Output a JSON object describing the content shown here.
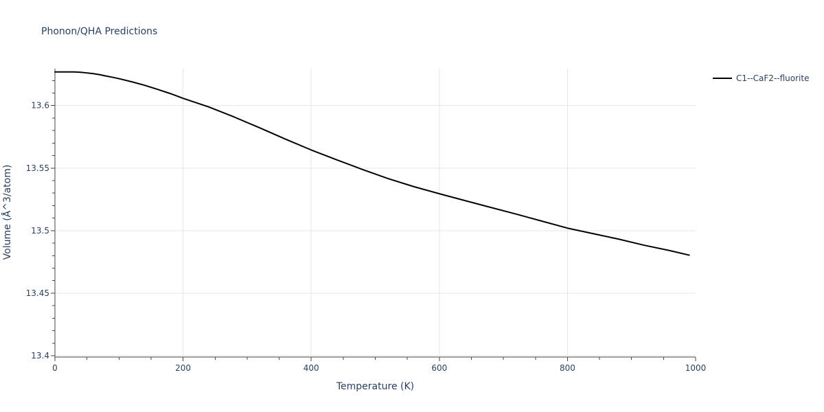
{
  "chart_data": {
    "type": "line",
    "title": "Phonon/QHA Predictions",
    "xlabel": "Temperature (K)",
    "ylabel": "Volume (Å^3/atom)",
    "xlim": [
      0,
      1000
    ],
    "ylim": [
      13.4,
      13.6295
    ],
    "grid": true,
    "legend_position": "top-right",
    "x_ticks": [
      0,
      200,
      400,
      600,
      800,
      1000
    ],
    "x_tick_labels": [
      "0",
      "200",
      "400",
      "600",
      "800",
      "1000"
    ],
    "y_ticks": [
      13.4,
      13.45,
      13.5,
      13.55,
      13.6
    ],
    "y_tick_labels": [
      "13.4",
      "13.45",
      "13.5",
      "13.55",
      "13.6"
    ],
    "series": [
      {
        "name": "C1--CaF2--fluorite",
        "color": "#000000",
        "x": [
          0,
          10,
          20,
          30,
          40,
          50,
          60,
          70,
          80,
          90,
          100,
          120,
          140,
          160,
          180,
          200,
          240,
          280,
          320,
          360,
          400,
          440,
          480,
          520,
          560,
          600,
          640,
          680,
          720,
          760,
          800,
          840,
          880,
          920,
          960,
          990
        ],
        "y": [
          13.6269,
          13.6269,
          13.6269,
          13.6269,
          13.6266,
          13.6261,
          13.6255,
          13.6247,
          13.6236,
          13.6226,
          13.6215,
          13.619,
          13.6162,
          13.613,
          13.6096,
          13.6058,
          13.5989,
          13.5908,
          13.5821,
          13.5731,
          13.5645,
          13.5566,
          13.5489,
          13.5416,
          13.5352,
          13.5295,
          13.524,
          13.5186,
          13.5132,
          13.5076,
          13.502,
          13.4976,
          13.4932,
          13.4883,
          13.484,
          13.4804
        ]
      }
    ]
  }
}
